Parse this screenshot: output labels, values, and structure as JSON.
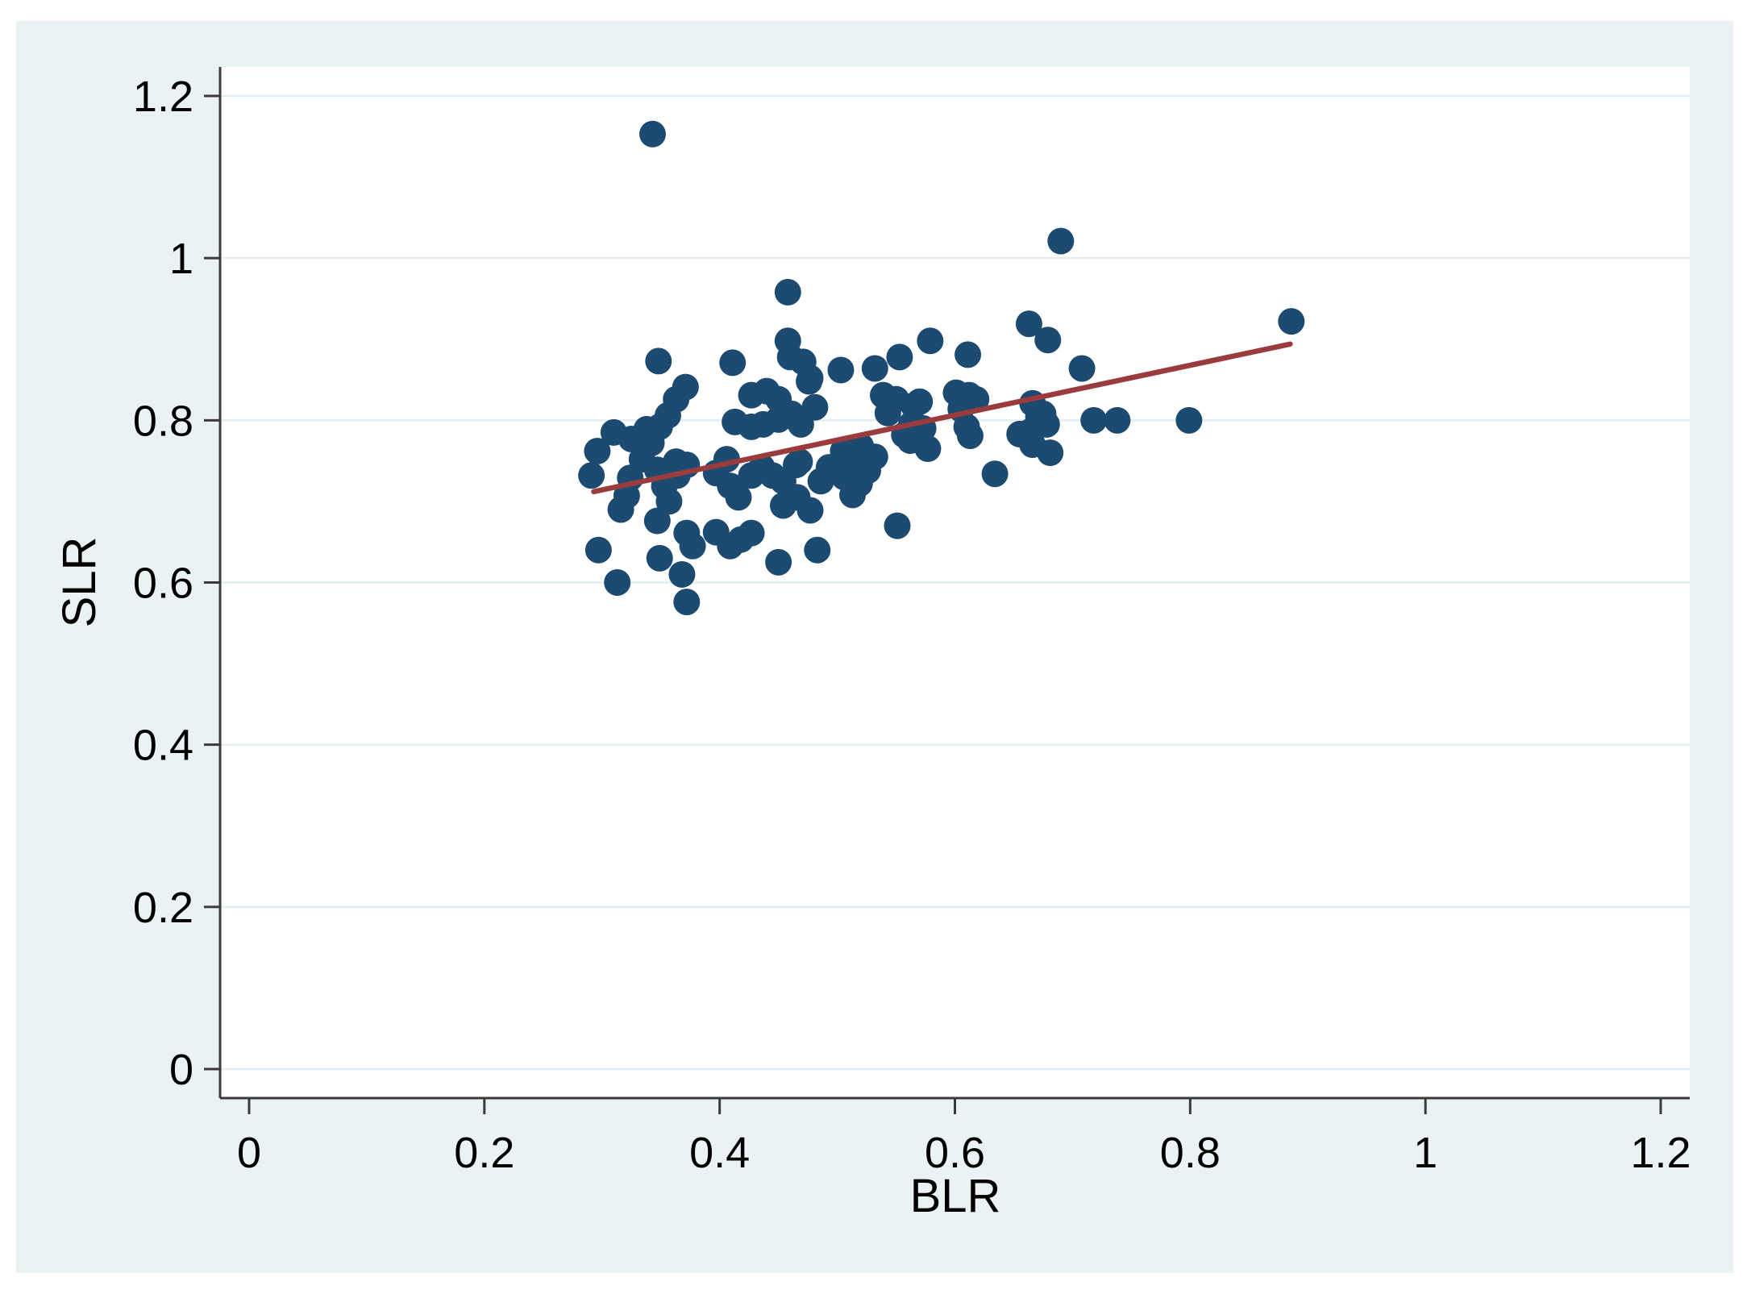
{
  "figure": {
    "outer_background": "#ffffff",
    "canvas_background": "#eaf2f3",
    "plot_background": "#ffffff",
    "gridline_color": "#e4eef2",
    "axis_color": "#3a3a3a"
  },
  "chart_data": {
    "type": "scatter",
    "title": "",
    "xlabel": "BLR",
    "ylabel": "SLR",
    "xlim": [
      0,
      1.2
    ],
    "ylim": [
      0,
      1.2
    ],
    "grid": "horizontal-only",
    "legend": "none",
    "point_color": "#1c4a70",
    "fit_line_color": "#9a3b3d",
    "x_ticks": [
      {
        "v": 0,
        "label": "0"
      },
      {
        "v": 0.2,
        "label": "0.2"
      },
      {
        "v": 0.4,
        "label": "0.4"
      },
      {
        "v": 0.6,
        "label": "0.6"
      },
      {
        "v": 0.8,
        "label": "0.8"
      },
      {
        "v": 1,
        "label": "1"
      },
      {
        "v": 1.2,
        "label": "1.2"
      }
    ],
    "y_ticks": [
      {
        "v": 0,
        "label": "0"
      },
      {
        "v": 0.2,
        "label": "0.2"
      },
      {
        "v": 0.4,
        "label": "0.4"
      },
      {
        "v": 0.6,
        "label": "0.6"
      },
      {
        "v": 0.8,
        "label": "0.8"
      },
      {
        "v": 1,
        "label": "1"
      },
      {
        "v": 1.2,
        "label": "1.2"
      }
    ],
    "fit_line": {
      "x1": 0.293,
      "y1": 0.712,
      "x2": 0.885,
      "y2": 0.894
    },
    "points": [
      [
        0.343,
        1.153
      ],
      [
        0.69,
        1.021
      ],
      [
        0.458,
        0.958
      ],
      [
        0.886,
        0.922
      ],
      [
        0.663,
        0.919
      ],
      [
        0.679,
        0.899
      ],
      [
        0.579,
        0.898
      ],
      [
        0.611,
        0.881
      ],
      [
        0.553,
        0.878
      ],
      [
        0.532,
        0.864
      ],
      [
        0.708,
        0.864
      ],
      [
        0.348,
        0.873
      ],
      [
        0.411,
        0.871
      ],
      [
        0.458,
        0.898
      ],
      [
        0.46,
        0.878
      ],
      [
        0.471,
        0.872
      ],
      [
        0.477,
        0.852
      ],
      [
        0.476,
        0.848
      ],
      [
        0.503,
        0.862
      ],
      [
        0.481,
        0.816
      ],
      [
        0.371,
        0.841
      ],
      [
        0.363,
        0.826
      ],
      [
        0.427,
        0.831
      ],
      [
        0.44,
        0.836
      ],
      [
        0.45,
        0.826
      ],
      [
        0.601,
        0.834
      ],
      [
        0.612,
        0.831
      ],
      [
        0.605,
        0.814
      ],
      [
        0.618,
        0.826
      ],
      [
        0.666,
        0.821
      ],
      [
        0.671,
        0.804
      ],
      [
        0.539,
        0.831
      ],
      [
        0.55,
        0.826
      ],
      [
        0.565,
        0.818
      ],
      [
        0.543,
        0.809
      ],
      [
        0.57,
        0.823
      ],
      [
        0.356,
        0.806
      ],
      [
        0.349,
        0.792
      ],
      [
        0.413,
        0.798
      ],
      [
        0.427,
        0.792
      ],
      [
        0.437,
        0.795
      ],
      [
        0.45,
        0.801
      ],
      [
        0.461,
        0.808
      ],
      [
        0.469,
        0.795
      ],
      [
        0.31,
        0.785
      ],
      [
        0.338,
        0.789
      ],
      [
        0.563,
        0.795
      ],
      [
        0.573,
        0.79
      ],
      [
        0.61,
        0.792
      ],
      [
        0.655,
        0.783
      ],
      [
        0.664,
        0.786
      ],
      [
        0.675,
        0.808
      ],
      [
        0.678,
        0.795
      ],
      [
        0.718,
        0.8
      ],
      [
        0.738,
        0.8
      ],
      [
        0.799,
        0.8
      ],
      [
        0.557,
        0.782
      ],
      [
        0.296,
        0.762
      ],
      [
        0.325,
        0.777
      ],
      [
        0.342,
        0.772
      ],
      [
        0.334,
        0.752
      ],
      [
        0.347,
        0.739
      ],
      [
        0.363,
        0.749
      ],
      [
        0.372,
        0.745
      ],
      [
        0.406,
        0.752
      ],
      [
        0.436,
        0.742
      ],
      [
        0.468,
        0.749
      ],
      [
        0.493,
        0.742
      ],
      [
        0.562,
        0.775
      ],
      [
        0.577,
        0.765
      ],
      [
        0.613,
        0.781
      ],
      [
        0.666,
        0.77
      ],
      [
        0.681,
        0.76
      ],
      [
        0.505,
        0.762
      ],
      [
        0.52,
        0.768
      ],
      [
        0.532,
        0.755
      ],
      [
        0.512,
        0.748
      ],
      [
        0.526,
        0.738
      ],
      [
        0.465,
        0.745
      ],
      [
        0.291,
        0.732
      ],
      [
        0.324,
        0.729
      ],
      [
        0.321,
        0.707
      ],
      [
        0.316,
        0.69
      ],
      [
        0.353,
        0.719
      ],
      [
        0.357,
        0.7
      ],
      [
        0.364,
        0.732
      ],
      [
        0.397,
        0.735
      ],
      [
        0.409,
        0.719
      ],
      [
        0.416,
        0.705
      ],
      [
        0.427,
        0.732
      ],
      [
        0.445,
        0.732
      ],
      [
        0.454,
        0.725
      ],
      [
        0.486,
        0.725
      ],
      [
        0.466,
        0.705
      ],
      [
        0.454,
        0.695
      ],
      [
        0.477,
        0.689
      ],
      [
        0.506,
        0.73
      ],
      [
        0.519,
        0.722
      ],
      [
        0.513,
        0.708
      ],
      [
        0.634,
        0.734
      ],
      [
        0.347,
        0.676
      ],
      [
        0.297,
        0.64
      ],
      [
        0.313,
        0.6
      ],
      [
        0.349,
        0.63
      ],
      [
        0.368,
        0.61
      ],
      [
        0.372,
        0.576
      ],
      [
        0.397,
        0.662
      ],
      [
        0.372,
        0.661
      ],
      [
        0.377,
        0.645
      ],
      [
        0.409,
        0.645
      ],
      [
        0.418,
        0.653
      ],
      [
        0.427,
        0.661
      ],
      [
        0.45,
        0.625
      ],
      [
        0.483,
        0.64
      ],
      [
        0.551,
        0.67
      ]
    ]
  }
}
